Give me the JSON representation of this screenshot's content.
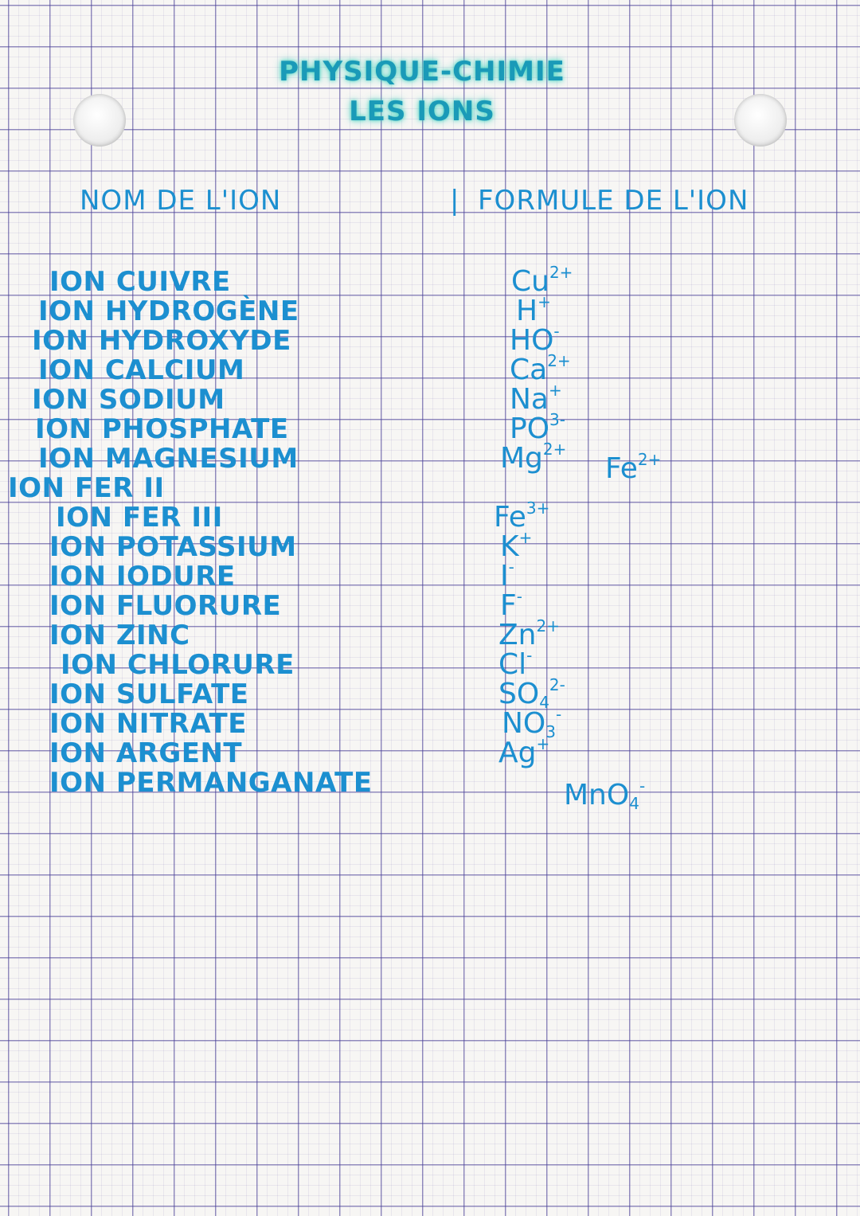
{
  "title": {
    "line1": "PHYSIQUE-CHIMIE",
    "line2": "LES IONS"
  },
  "headers": {
    "name": "NOM DE L'ION",
    "separator": "|",
    "formula": "FORMULE DE L'ION"
  },
  "ions": [
    {
      "name": "ION CUIVRE",
      "base": "Cu",
      "sub": "",
      "charge": "2+"
    },
    {
      "name": "ION HYDROGÈNE",
      "base": "H",
      "sub": "",
      "charge": "+"
    },
    {
      "name": "ION HYDROXYDE",
      "base": "HO",
      "sub": "",
      "charge": "-"
    },
    {
      "name": "ION CALCIUM",
      "base": "Ca",
      "sub": "",
      "charge": "2+"
    },
    {
      "name": "ION SODIUM",
      "base": "Na",
      "sub": "",
      "charge": "+"
    },
    {
      "name": "ION PHOSPHATE",
      "base": "PO",
      "sub": "",
      "charge": "3-"
    },
    {
      "name": "ION MAGNESIUM",
      "base": "Mg",
      "sub": "",
      "charge": "2+"
    },
    {
      "name": "ION FER II",
      "base": "Fe",
      "sub": "",
      "charge": "2+"
    },
    {
      "name": "ION FER III",
      "base": "Fe",
      "sub": "",
      "charge": "3+"
    },
    {
      "name": "ION POTASSIUM",
      "base": "K",
      "sub": "",
      "charge": "+"
    },
    {
      "name": "ION IODURE",
      "base": "I",
      "sub": "",
      "charge": "-"
    },
    {
      "name": "ION FLUORURE",
      "base": "F",
      "sub": "",
      "charge": "-"
    },
    {
      "name": "ION ZINC",
      "base": "Zn",
      "sub": "",
      "charge": "2+"
    },
    {
      "name": "ION CHLORURE",
      "base": "Cl",
      "sub": "",
      "charge": "-"
    },
    {
      "name": "ION SULFATE",
      "base": "SO",
      "sub": "4",
      "charge": "2-"
    },
    {
      "name": "ION NITRATE",
      "base": "NO",
      "sub": "3",
      "charge": "-"
    },
    {
      "name": "ION ARGENT",
      "base": "Ag",
      "sub": "",
      "charge": "+"
    },
    {
      "name": "ION PERMANGANATE",
      "base": "MnO",
      "sub": "4",
      "charge": "-"
    }
  ],
  "colors": {
    "ink": "#1c8fd0",
    "highlighter": "#3cd2be",
    "grid": "#463c96"
  }
}
